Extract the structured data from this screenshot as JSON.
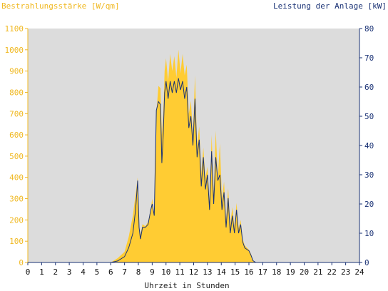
{
  "chart_data": {
    "type": "area",
    "left_axis_title": "Bestrahlungsstärke [W/qm]",
    "right_axis_title": "Leistung der Anlage [kW]",
    "xlabel": "Uhrzeit in Stunden",
    "xlim": [
      0,
      24
    ],
    "ylim_left": [
      0,
      1100
    ],
    "ylim_right": [
      0,
      80
    ],
    "x_ticks": [
      "0",
      "1",
      "2",
      "3",
      "4",
      "5",
      "6",
      "7",
      "8",
      "9",
      "10",
      "11",
      "12",
      "13",
      "14",
      "15",
      "16",
      "17",
      "18",
      "19",
      "20",
      "21",
      "22",
      "23",
      "24"
    ],
    "y_ticks_left": [
      "0",
      "100",
      "200",
      "300",
      "400",
      "500",
      "600",
      "700",
      "800",
      "900",
      "1000",
      "1100"
    ],
    "y_ticks_right": [
      "0",
      "10",
      "20",
      "30",
      "40",
      "50",
      "60",
      "70",
      "80"
    ],
    "grid": false,
    "colors": {
      "irradiance_fill": "#FFCC33",
      "power_line": "#1A3275",
      "left_axis_text": "#F0B820",
      "right_axis_text": "#1A3275",
      "plot_background": "#DCDCDC"
    },
    "series": [
      {
        "axis": "left",
        "style": "area",
        "x": [
          0,
          6.0,
          6.5,
          7.0,
          7.3,
          7.6,
          7.8,
          7.95,
          8.05,
          8.15,
          8.3,
          8.5,
          8.7,
          8.9,
          9.0,
          9.15,
          9.3,
          9.45,
          9.6,
          9.7,
          9.8,
          9.9,
          10.0,
          10.15,
          10.3,
          10.45,
          10.6,
          10.75,
          10.9,
          11.05,
          11.2,
          11.35,
          11.5,
          11.65,
          11.8,
          11.95,
          12.1,
          12.25,
          12.4,
          12.55,
          12.7,
          12.85,
          13.0,
          13.15,
          13.3,
          13.45,
          13.6,
          13.75,
          13.9,
          14.05,
          14.2,
          14.35,
          14.5,
          14.65,
          14.8,
          14.95,
          15.1,
          15.25,
          15.4,
          15.55,
          15.7,
          15.85,
          16.0,
          16.15,
          16.3,
          16.5,
          16.7,
          17.0,
          17.3,
          17.6,
          17.9,
          18.2,
          18.5,
          18.8,
          19.0,
          24
        ],
        "values": [
          0,
          0,
          20,
          50,
          120,
          220,
          320,
          400,
          160,
          130,
          180,
          170,
          190,
          250,
          300,
          220,
          700,
          830,
          820,
          600,
          700,
          900,
          960,
          850,
          980,
          900,
          970,
          870,
          1000,
          890,
          980,
          880,
          930,
          700,
          760,
          600,
          880,
          550,
          640,
          420,
          540,
          400,
          450,
          280,
          600,
          320,
          620,
          400,
          560,
          300,
          380,
          200,
          350,
          180,
          260,
          170,
          280,
          160,
          200,
          110,
          80,
          70,
          60,
          40,
          10,
          0,
          0,
          0,
          0,
          0,
          0,
          0,
          0,
          0,
          0,
          0
        ]
      },
      {
        "axis": "right",
        "style": "line",
        "x": [
          0,
          6.0,
          6.5,
          7.0,
          7.3,
          7.6,
          7.8,
          7.95,
          8.05,
          8.15,
          8.3,
          8.5,
          8.7,
          8.9,
          9.0,
          9.15,
          9.3,
          9.45,
          9.6,
          9.7,
          9.8,
          9.9,
          10.0,
          10.15,
          10.3,
          10.45,
          10.6,
          10.75,
          10.9,
          11.05,
          11.2,
          11.35,
          11.5,
          11.65,
          11.8,
          11.95,
          12.1,
          12.25,
          12.4,
          12.55,
          12.7,
          12.85,
          13.0,
          13.15,
          13.3,
          13.45,
          13.6,
          13.75,
          13.9,
          14.05,
          14.2,
          14.35,
          14.5,
          14.65,
          14.8,
          14.95,
          15.1,
          15.25,
          15.4,
          15.55,
          15.7,
          15.85,
          16.0,
          16.15,
          16.3,
          16.5,
          16.7,
          17.0,
          17.3,
          17.6,
          17.9,
          18.2,
          18.5,
          18.8,
          19.0,
          24
        ],
        "values": [
          0,
          0,
          0.5,
          2,
          5,
          10,
          18,
          28,
          12,
          8,
          12,
          12,
          13,
          18,
          20,
          16,
          52,
          55,
          54,
          34,
          44,
          58,
          62,
          56,
          62,
          58,
          62,
          58,
          63,
          59,
          62,
          56,
          60,
          46,
          50,
          40,
          56,
          36,
          42,
          26,
          36,
          25,
          30,
          18,
          38,
          20,
          36,
          28,
          30,
          18,
          24,
          12,
          22,
          10,
          16,
          10,
          18,
          10,
          13,
          7,
          5,
          4.5,
          4,
          2.5,
          0.6,
          0,
          0,
          0,
          0,
          0,
          0,
          0,
          0,
          0,
          0,
          0
        ]
      }
    ]
  }
}
